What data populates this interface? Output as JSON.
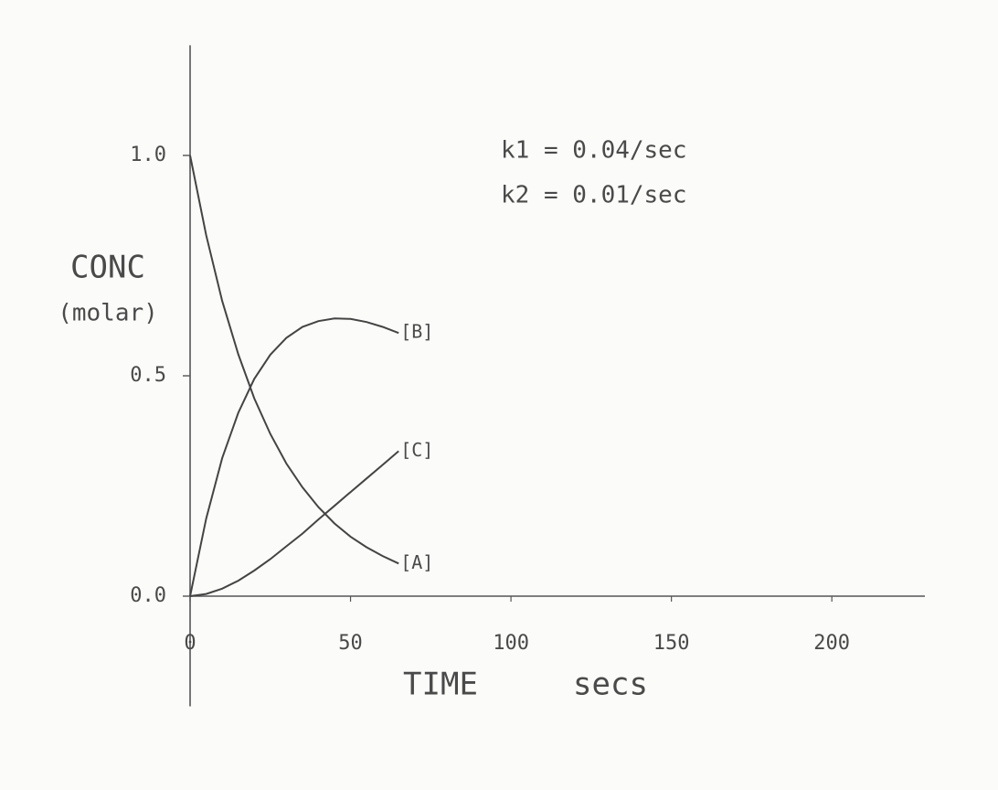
{
  "chart_data": {
    "type": "line",
    "annotations": [
      "k1 = 0.04/sec",
      "k2 = 0.01/sec"
    ],
    "y_label": [
      "CONC",
      "(molar)"
    ],
    "x_label": [
      "TIME",
      "secs"
    ],
    "x": [
      0,
      5,
      10,
      15,
      20,
      25,
      30,
      35,
      40,
      45,
      50,
      55,
      60,
      65
    ],
    "series": [
      {
        "name": "[A]",
        "color": "#444444",
        "values": [
          1,
          0.819,
          0.67,
          0.549,
          0.449,
          0.368,
          0.301,
          0.247,
          0.202,
          0.165,
          0.135,
          0.111,
          0.091,
          0.074
        ]
      },
      {
        "name": "[B]",
        "color": "#444444",
        "values": [
          0,
          0.176,
          0.313,
          0.416,
          0.493,
          0.548,
          0.586,
          0.611,
          0.624,
          0.63,
          0.629,
          0.622,
          0.611,
          0.597
        ]
      },
      {
        "name": "[C]",
        "color": "#444444",
        "values": [
          0,
          0.005,
          0.017,
          0.035,
          0.058,
          0.084,
          0.113,
          0.142,
          0.174,
          0.205,
          0.236,
          0.267,
          0.298,
          0.329
        ]
      }
    ],
    "xlim": [
      0,
      229
    ],
    "xticks": [
      0,
      50,
      100,
      150,
      200
    ],
    "ylim": [
      -0.25,
      1.25
    ],
    "yticks": [
      {
        "value": 0,
        "label": "0.0"
      },
      0.5,
      {
        "value": 1,
        "label": "1.0"
      }
    ],
    "grid": false
  }
}
